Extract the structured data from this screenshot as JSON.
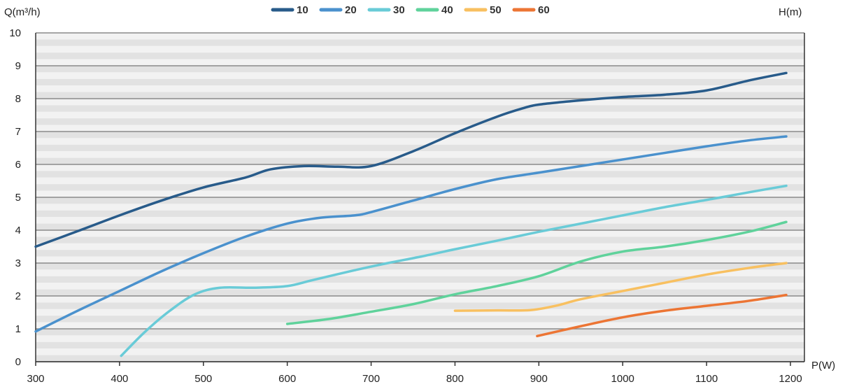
{
  "chart_data": {
    "type": "line",
    "title": "",
    "ylabel": "Q(m³/h)",
    "xlabel": "P(W)",
    "right_label": "H(m)",
    "xlim": [
      300,
      1200
    ],
    "ylim": [
      0,
      10
    ],
    "x_ticks": [
      "300",
      "400",
      "500",
      "600",
      "700",
      "800",
      "900",
      "1000",
      "1100",
      "1200"
    ],
    "y_ticks": [
      "0",
      "1",
      "2",
      "3",
      "4",
      "5",
      "6",
      "7",
      "8",
      "9",
      "10"
    ],
    "grid": "horizontal",
    "legend_position": "top-center",
    "series": [
      {
        "name": "10",
        "color": "#285b8a",
        "points": [
          [
            300,
            3.5
          ],
          [
            350,
            3.97
          ],
          [
            400,
            4.45
          ],
          [
            450,
            4.9
          ],
          [
            500,
            5.3
          ],
          [
            550,
            5.6
          ],
          [
            580,
            5.85
          ],
          [
            620,
            5.95
          ],
          [
            660,
            5.93
          ],
          [
            700,
            5.95
          ],
          [
            750,
            6.4
          ],
          [
            800,
            6.95
          ],
          [
            850,
            7.45
          ],
          [
            880,
            7.7
          ],
          [
            900,
            7.82
          ],
          [
            950,
            7.95
          ],
          [
            1000,
            8.05
          ],
          [
            1050,
            8.12
          ],
          [
            1100,
            8.25
          ],
          [
            1150,
            8.55
          ],
          [
            1195,
            8.78
          ]
        ]
      },
      {
        "name": "20",
        "color": "#4a91cd",
        "points": [
          [
            300,
            0.92
          ],
          [
            350,
            1.55
          ],
          [
            400,
            2.15
          ],
          [
            450,
            2.75
          ],
          [
            500,
            3.3
          ],
          [
            550,
            3.8
          ],
          [
            600,
            4.2
          ],
          [
            640,
            4.38
          ],
          [
            680,
            4.45
          ],
          [
            700,
            4.55
          ],
          [
            750,
            4.9
          ],
          [
            800,
            5.25
          ],
          [
            850,
            5.55
          ],
          [
            900,
            5.75
          ],
          [
            950,
            5.95
          ],
          [
            1000,
            6.15
          ],
          [
            1050,
            6.35
          ],
          [
            1100,
            6.55
          ],
          [
            1150,
            6.73
          ],
          [
            1195,
            6.85
          ]
        ]
      },
      {
        "name": "30",
        "color": "#69cbd7",
        "points": [
          [
            402,
            0.18
          ],
          [
            430,
            0.9
          ],
          [
            460,
            1.55
          ],
          [
            490,
            2.05
          ],
          [
            520,
            2.25
          ],
          [
            560,
            2.25
          ],
          [
            600,
            2.3
          ],
          [
            630,
            2.48
          ],
          [
            680,
            2.78
          ],
          [
            720,
            3.0
          ],
          [
            760,
            3.2
          ],
          [
            800,
            3.42
          ],
          [
            850,
            3.68
          ],
          [
            900,
            3.95
          ],
          [
            950,
            4.2
          ],
          [
            1000,
            4.45
          ],
          [
            1050,
            4.7
          ],
          [
            1100,
            4.92
          ],
          [
            1150,
            5.15
          ],
          [
            1195,
            5.35
          ]
        ]
      },
      {
        "name": "40",
        "color": "#5fd29b",
        "points": [
          [
            600,
            1.15
          ],
          [
            650,
            1.3
          ],
          [
            700,
            1.52
          ],
          [
            750,
            1.75
          ],
          [
            800,
            2.05
          ],
          [
            850,
            2.3
          ],
          [
            900,
            2.6
          ],
          [
            950,
            3.05
          ],
          [
            1000,
            3.35
          ],
          [
            1050,
            3.5
          ],
          [
            1100,
            3.7
          ],
          [
            1150,
            3.95
          ],
          [
            1195,
            4.25
          ]
        ]
      },
      {
        "name": "50",
        "color": "#f8c060",
        "points": [
          [
            800,
            1.55
          ],
          [
            850,
            1.56
          ],
          [
            890,
            1.57
          ],
          [
            920,
            1.7
          ],
          [
            950,
            1.9
          ],
          [
            1000,
            2.15
          ],
          [
            1050,
            2.4
          ],
          [
            1100,
            2.65
          ],
          [
            1150,
            2.85
          ],
          [
            1195,
            3.0
          ]
        ]
      },
      {
        "name": "60",
        "color": "#ec7534",
        "points": [
          [
            898,
            0.78
          ],
          [
            950,
            1.08
          ],
          [
            1000,
            1.35
          ],
          [
            1050,
            1.55
          ],
          [
            1100,
            1.7
          ],
          [
            1150,
            1.85
          ],
          [
            1195,
            2.03
          ]
        ]
      }
    ]
  }
}
